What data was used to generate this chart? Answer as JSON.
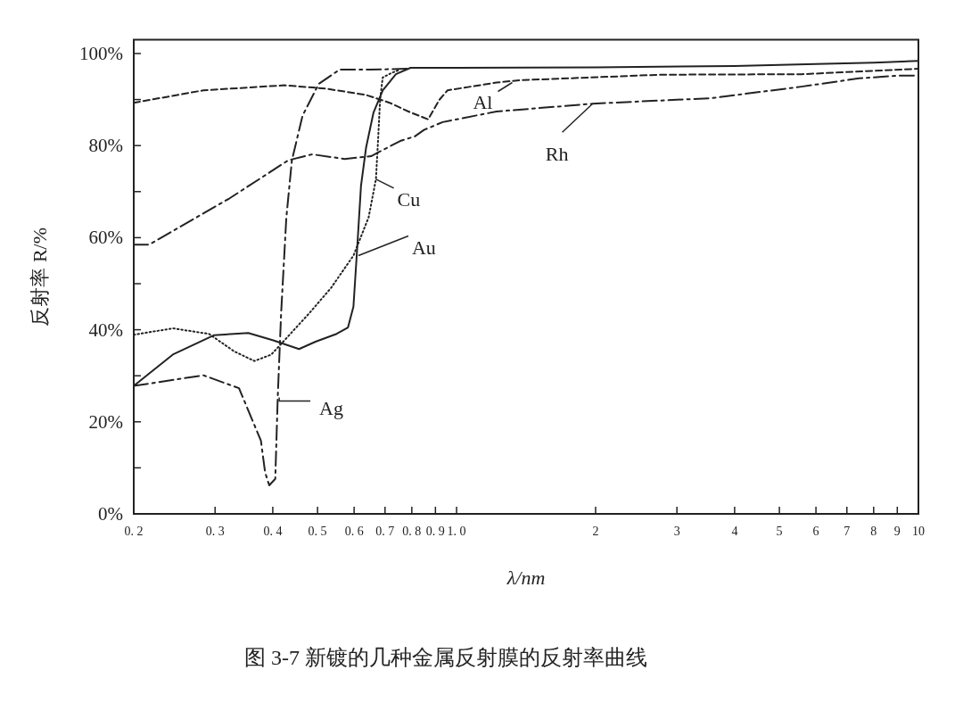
{
  "chart_data": {
    "type": "line",
    "title": "图 3-7   新镀的几种金属反射膜的反射率曲线",
    "xlabel": "λ/nm",
    "ylabel": "反射率 R/%",
    "log": "x",
    "xlim": [
      0.2,
      10
    ],
    "ylim": [
      0,
      103
    ],
    "xticks": [
      {
        "value": 0.2,
        "label": "0. 2"
      },
      {
        "value": 0.3,
        "label": "0. 3"
      },
      {
        "value": 0.4,
        "label": "0. 4"
      },
      {
        "value": 0.5,
        "label": "0. 5"
      },
      {
        "value": 0.6,
        "label": "0. 6"
      },
      {
        "value": 0.7,
        "label": "0. 7"
      },
      {
        "value": 0.8,
        "label": "0. 8"
      },
      {
        "value": 0.9,
        "label": "0. 9"
      },
      {
        "value": 1,
        "label": "1. 0"
      },
      2,
      3,
      4,
      5,
      6,
      7,
      8,
      9,
      10
    ],
    "yticks": [
      {
        "value": 0,
        "label": "0%"
      },
      {
        "value": 10,
        "label": null
      },
      {
        "value": 20,
        "label": "20%"
      },
      {
        "value": 30,
        "label": null
      },
      {
        "value": 40,
        "label": "40%"
      },
      {
        "value": 50,
        "label": null
      },
      {
        "value": 60,
        "label": "60%"
      },
      {
        "value": 70,
        "label": null
      },
      {
        "value": 80,
        "label": "80%"
      },
      {
        "value": 90,
        "label": null
      },
      {
        "value": 100,
        "label": "100%"
      }
    ],
    "series": [
      {
        "color": "#222222",
        "line_style": "dashdot",
        "x": [
          0.2,
          0.283,
          0.338,
          0.377,
          0.385,
          0.393,
          0.405,
          0.41,
          0.417,
          0.428,
          0.44,
          0.464,
          0.503,
          0.558,
          0.65,
          0.796
        ],
        "values": [
          27.8,
          30.1,
          27.3,
          15.9,
          9.0,
          6.2,
          7.6,
          25.3,
          43.6,
          64.4,
          76.8,
          86.5,
          93.4,
          96.5,
          96.5,
          96.7
        ]
      },
      {
        "color": "#222222",
        "line_style": "solid",
        "x": [
          0.2,
          0.243,
          0.298,
          0.354,
          0.401,
          0.456,
          0.495,
          0.55,
          0.582,
          0.598,
          0.609,
          0.621,
          0.637,
          0.661,
          0.692,
          0.739,
          0.795,
          0.85,
          1,
          2,
          4,
          6,
          8,
          10
        ],
        "values": [
          27.8,
          34.6,
          38.8,
          39.3,
          37.7,
          35.8,
          37.4,
          39.1,
          40.5,
          45.0,
          57.4,
          71.3,
          79.6,
          87.2,
          92.0,
          95.5,
          96.9,
          96.9,
          96.9,
          97.0,
          97.3,
          97.7,
          98.0,
          98.4
        ]
      },
      {
        "color": "#222222",
        "line_style": "dotted",
        "x": [
          0.2,
          0.243,
          0.291,
          0.33,
          0.365,
          0.397,
          0.424,
          0.48,
          0.535,
          0.598,
          0.645,
          0.669,
          0.676,
          0.683,
          0.692,
          0.724,
          0.755
        ],
        "values": [
          38.9,
          40.3,
          39.1,
          35.3,
          33.2,
          34.6,
          37.7,
          43.6,
          49.1,
          56.1,
          64.4,
          72.7,
          81.0,
          90.0,
          94.8,
          95.8,
          96.5
        ]
      },
      {
        "color": "#222222",
        "line_style": "dashed",
        "x": [
          0.2,
          0.283,
          0.424,
          0.519,
          0.637,
          0.716,
          0.795,
          0.868,
          0.917,
          0.956,
          1.22,
          1.37,
          2.77,
          5.58,
          10
        ],
        "values": [
          89.3,
          92.0,
          93.1,
          92.4,
          91.0,
          89.3,
          87.2,
          85.7,
          89.9,
          92.0,
          93.7,
          94.2,
          95.4,
          95.5,
          96.7
        ]
      },
      {
        "color": "#222222",
        "line_style": "dashdot",
        "x": [
          0.2,
          0.216,
          0.322,
          0.432,
          0.487,
          0.572,
          0.653,
          0.755,
          0.812,
          0.85,
          0.933,
          1.22,
          1.97,
          3.56,
          5.58,
          7.44,
          9.0,
          10
        ],
        "values": [
          58.5,
          58.5,
          68.5,
          76.8,
          78.1,
          77.1,
          77.7,
          81.0,
          82.0,
          83.4,
          85.1,
          87.4,
          89.1,
          90.3,
          92.8,
          94.6,
          95.2,
          95.2
        ]
      }
    ],
    "annotations": [
      {
        "text": "Cu",
        "x": 0.669,
        "y": 72.7
      },
      {
        "text": "Au",
        "x": 0.613,
        "y": 56.1
      },
      {
        "text": "Ag",
        "x": 0.413,
        "y": 25.3
      },
      {
        "text": "Al",
        "x": 1.32,
        "y": 93.7
      },
      {
        "text": "Rh",
        "x": 1.97,
        "y": 89.1
      }
    ]
  }
}
